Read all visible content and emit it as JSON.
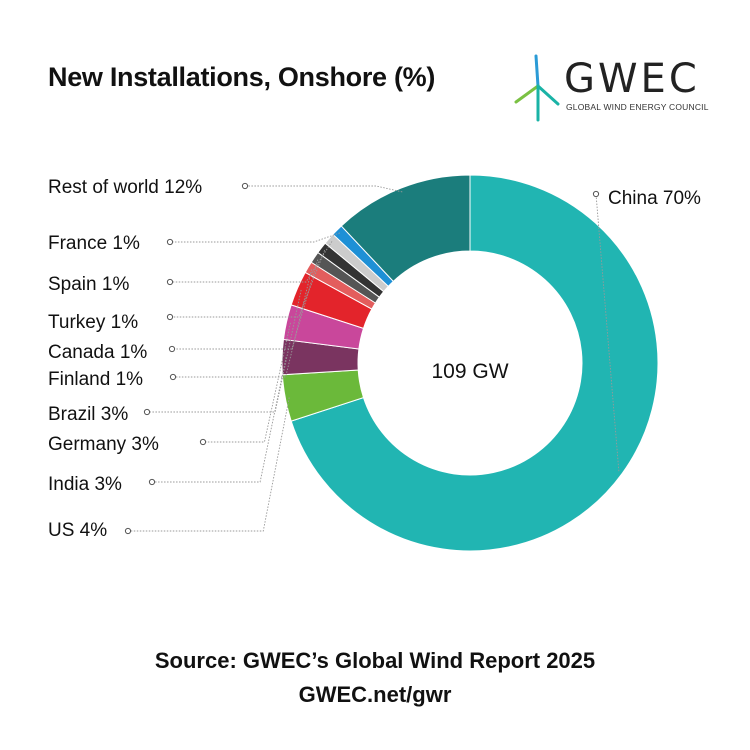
{
  "header": {
    "title": "New Installations, Onshore (%)"
  },
  "logo": {
    "wordmark": "GWEC",
    "subtitle": "GLOBAL WIND ENERGY COUNCIL",
    "icon": "wind-turbine-icon",
    "colors": {
      "arm_a": "#2b9bd6",
      "arm_b": "#7ac143",
      "arm_c": "#1ab3a6"
    }
  },
  "chart_data": {
    "type": "pie",
    "donut": true,
    "center_label": "109 GW",
    "unit": "%",
    "slices": [
      {
        "label": "China",
        "value": 70,
        "display": "China 70%",
        "color": "#21b5b2"
      },
      {
        "label": "US",
        "value": 4,
        "display": "US 4%",
        "color": "#6bb93a"
      },
      {
        "label": "India",
        "value": 3,
        "display": "India 3%",
        "color": "#7a3460"
      },
      {
        "label": "Germany",
        "value": 3,
        "display": "Germany 3%",
        "color": "#c9479b"
      },
      {
        "label": "Brazil",
        "value": 3,
        "display": "Brazil 3%",
        "color": "#e3242b"
      },
      {
        "label": "Finland",
        "value": 1,
        "display": "Finland 1%",
        "color": "#e35d5d"
      },
      {
        "label": "Canada",
        "value": 1,
        "display": "Canada 1%",
        "color": "#555555"
      },
      {
        "label": "Turkey",
        "value": 1,
        "display": "Turkey 1%",
        "color": "#333333"
      },
      {
        "label": "Spain",
        "value": 1,
        "display": "Spain 1%",
        "color": "#cccccc"
      },
      {
        "label": "France",
        "value": 1,
        "display": "France 1%",
        "color": "#1e90d6"
      },
      {
        "label": "Rest of world",
        "value": 12,
        "display": "Rest of world 12%",
        "color": "#1b7d7c"
      }
    ]
  },
  "footer": {
    "source": "Source: GWEC’s Global Wind Report 2025",
    "url": "GWEC.net/gwr"
  }
}
